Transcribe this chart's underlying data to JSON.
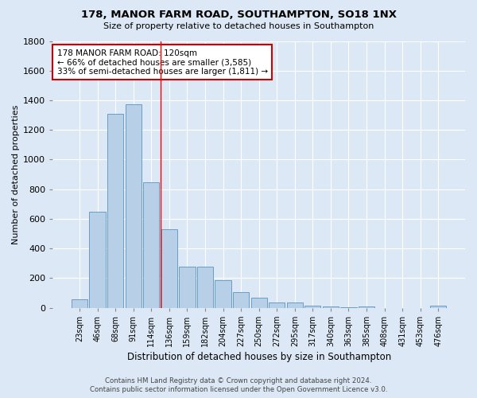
{
  "title": "178, MANOR FARM ROAD, SOUTHAMPTON, SO18 1NX",
  "subtitle": "Size of property relative to detached houses in Southampton",
  "xlabel": "Distribution of detached houses by size in Southampton",
  "ylabel": "Number of detached properties",
  "footer_line1": "Contains HM Land Registry data © Crown copyright and database right 2024.",
  "footer_line2": "Contains public sector information licensed under the Open Government Licence v3.0.",
  "categories": [
    "23sqm",
    "46sqm",
    "68sqm",
    "91sqm",
    "114sqm",
    "136sqm",
    "159sqm",
    "182sqm",
    "204sqm",
    "227sqm",
    "250sqm",
    "272sqm",
    "295sqm",
    "317sqm",
    "340sqm",
    "363sqm",
    "385sqm",
    "408sqm",
    "431sqm",
    "453sqm",
    "476sqm"
  ],
  "values": [
    55,
    645,
    1310,
    1375,
    845,
    530,
    275,
    275,
    185,
    105,
    65,
    35,
    35,
    15,
    10,
    5,
    10,
    0,
    0,
    0,
    15
  ],
  "bar_color": "#b8cfe8",
  "bar_edge_color": "#6a9ec5",
  "background_color": "#dce8f5",
  "grid_color": "#ffffff",
  "red_line_x": 4.5,
  "annotation_text_line1": "178 MANOR FARM ROAD: 120sqm",
  "annotation_text_line2": "← 66% of detached houses are smaller (3,585)",
  "annotation_text_line3": "33% of semi-detached houses are larger (1,811) →",
  "annotation_box_facecolor": "#ffffff",
  "annotation_box_edgecolor": "#cc0000",
  "ylim": [
    0,
    1800
  ],
  "yticks": [
    0,
    200,
    400,
    600,
    800,
    1000,
    1200,
    1400,
    1600,
    1800
  ]
}
